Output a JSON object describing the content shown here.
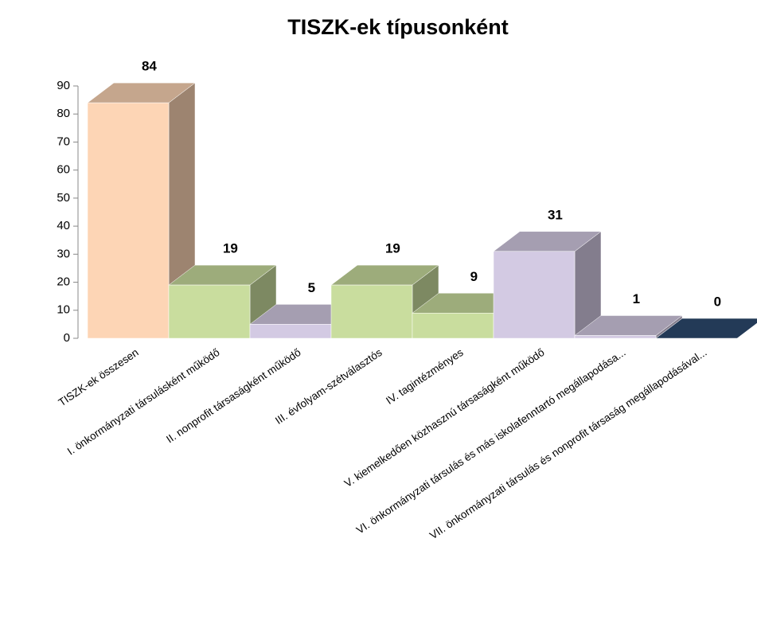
{
  "chart_data": {
    "type": "bar3d",
    "title": "TISZK-ek típusonként",
    "categories": [
      "TISZK-ek összesen",
      "I. önkormányzati társulásként működő",
      "II. nonprofit társaságként működő",
      "III. évfolyam-szétválasztós",
      "IV. tagintézményes",
      "V. kiemelkedően közhasznú társaságként működő",
      "VI. önkormányzati társulás és más iskolafenntartó megállapodása...",
      "VII. önkormányzati társulás és nonprofit társaság megállapodásával..."
    ],
    "values": [
      84,
      19,
      5,
      19,
      9,
      31,
      1,
      0
    ],
    "colors": [
      "#fdd5b5",
      "#c9dd9e",
      "#d3cae3",
      "#c9dd9e",
      "#c9dd9e",
      "#d3cae3",
      "#d3cae3",
      "#2d4a6f"
    ],
    "ylim": [
      0,
      90
    ],
    "yticks": [
      0,
      10,
      20,
      30,
      40,
      50,
      60,
      70,
      80,
      90
    ]
  }
}
